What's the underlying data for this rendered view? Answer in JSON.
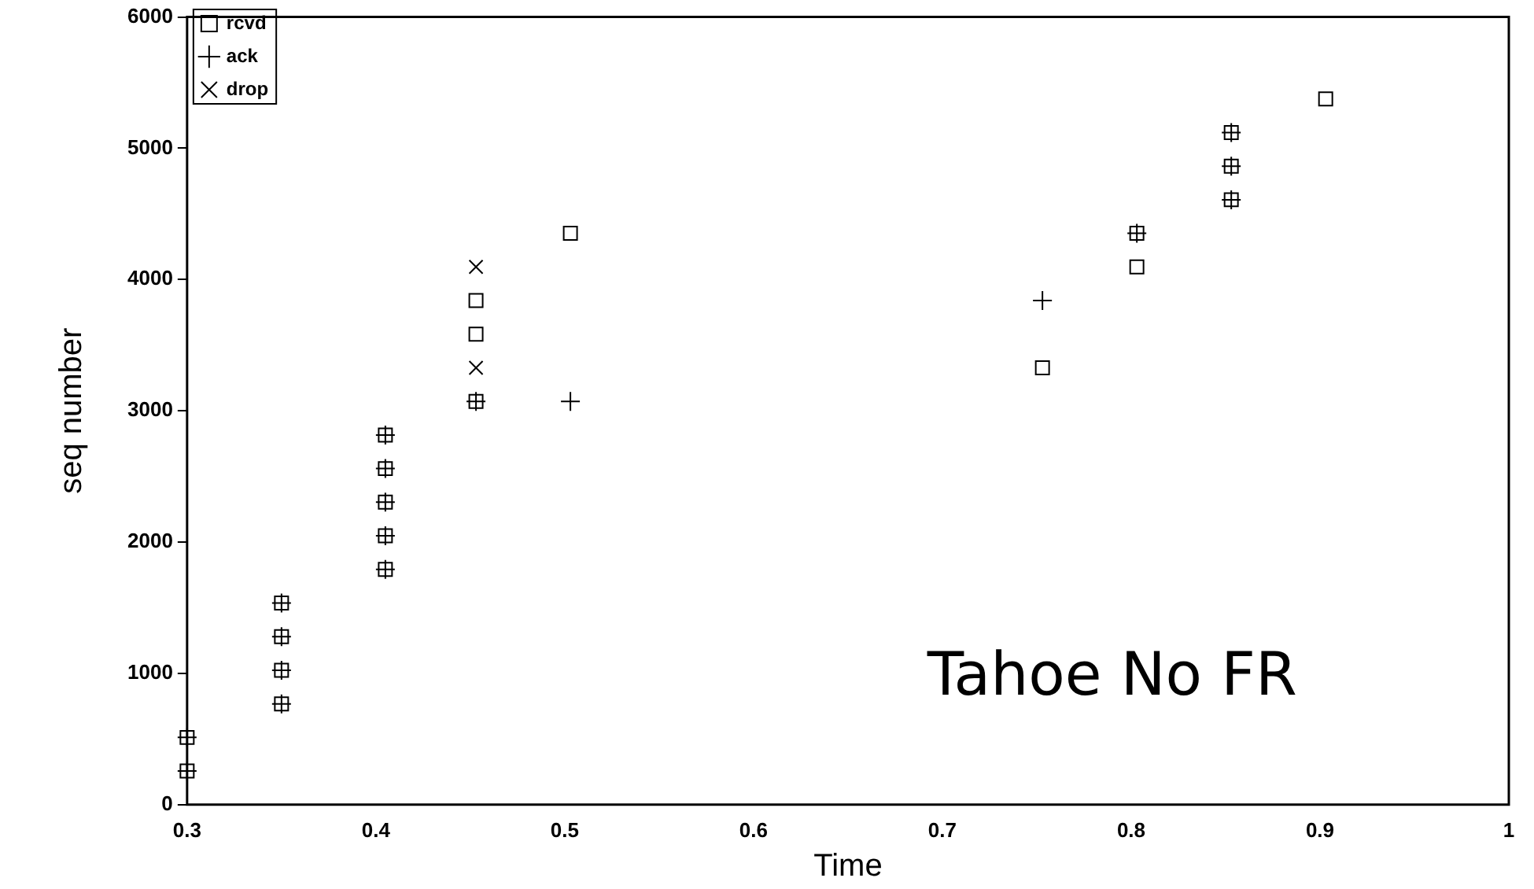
{
  "chart_data": {
    "type": "scatter",
    "xlabel": "Time",
    "ylabel": "seq number",
    "xlim": [
      0.3,
      1
    ],
    "xticks": [
      0.3,
      0.4,
      0.5,
      0.6,
      0.7,
      0.8,
      0.9,
      1
    ],
    "ylim": [
      0,
      6000
    ],
    "yticks": [
      0,
      1000,
      2000,
      3000,
      4000,
      5000,
      6000
    ],
    "grid": false,
    "legend": "top left",
    "annotations": [
      "Tahoe No FR"
    ],
    "series": [
      {
        "name": "rcvd",
        "color": "#000000",
        "marker": "square",
        "x": [
          0.3,
          0.3,
          0.35,
          0.35,
          0.35,
          0.35,
          0.405,
          0.405,
          0.405,
          0.405,
          0.405,
          0.453,
          0.453,
          0.453,
          0.503,
          0.753,
          0.803,
          0.803,
          0.853,
          0.853,
          0.853,
          0.903
        ],
        "values": [
          256,
          512,
          768,
          1024,
          1280,
          1536,
          1792,
          2048,
          2304,
          2560,
          2816,
          3072,
          3584,
          3840,
          4352,
          3328,
          4096,
          4352,
          4608,
          4864,
          5120,
          5376
        ]
      },
      {
        "name": "ack",
        "color": "#000000",
        "marker": "plus",
        "x": [
          0.3,
          0.3,
          0.35,
          0.35,
          0.35,
          0.35,
          0.405,
          0.405,
          0.405,
          0.405,
          0.405,
          0.453,
          0.503,
          0.753,
          0.803,
          0.853,
          0.853,
          0.853
        ],
        "values": [
          256,
          512,
          768,
          1024,
          1280,
          1536,
          1792,
          2048,
          2304,
          2560,
          2816,
          3072,
          3072,
          3840,
          4352,
          4608,
          4864,
          5120
        ]
      },
      {
        "name": "drop",
        "color": "#000000",
        "marker": "cross",
        "x": [
          0.453,
          0.453
        ],
        "values": [
          3328,
          4096
        ]
      }
    ]
  }
}
